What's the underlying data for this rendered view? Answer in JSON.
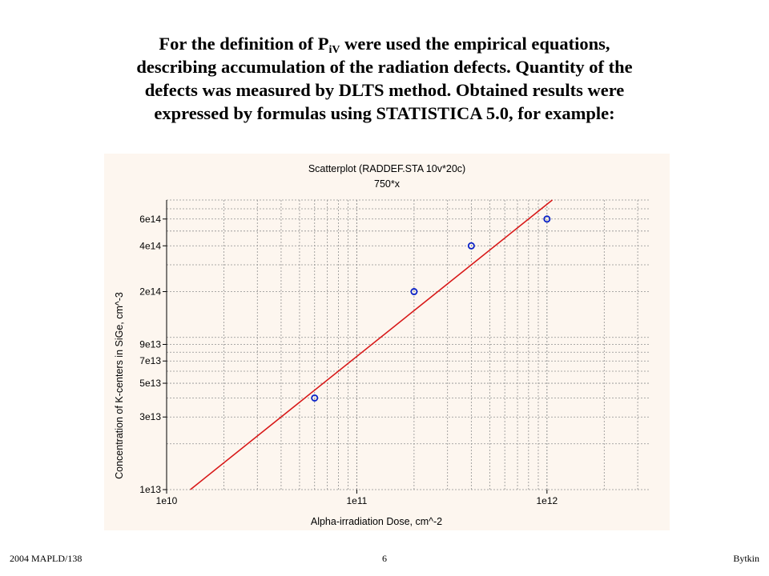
{
  "heading": {
    "line1_pre": "For the definition of P",
    "line1_sub": "iV",
    "line1_post": " were used the empirical equations,",
    "line2": "describing accumulation of the radiation defects. Quantity of the",
    "line3": "defects was measured by DLTS  method. Obtained results were",
    "line4": "expressed by formulas using STATISTICA 5.0, for example:"
  },
  "colors": {
    "panel_background": "#fdf6ef",
    "fit_line": "#d81818",
    "points": "#0a22c8",
    "grid": "#909090"
  },
  "chart_data": {
    "type": "scatter",
    "title": "Scatterplot (RADDEF.STA 10v*20c)",
    "subtitle": "750*x",
    "xlabel": "Alpha-irradiation Dose, cm^-2",
    "ylabel": "Concentration of K-centers in SiGe, cm^-3",
    "xscale": "log",
    "yscale": "log",
    "xlim": [
      10000000000.0,
      3500000000000.0
    ],
    "ylim": [
      10000000000000.0,
      800000000000000.0
    ],
    "grid": true,
    "x_ticks": [
      {
        "value": 10000000000.0,
        "label": "1e10"
      },
      {
        "value": 100000000000.0,
        "label": "1e11"
      },
      {
        "value": 1000000000000.0,
        "label": "1e12"
      }
    ],
    "y_ticks": [
      {
        "value": 10000000000000.0,
        "label": "1e13"
      },
      {
        "value": 30000000000000.0,
        "label": "3e13"
      },
      {
        "value": 50000000000000.0,
        "label": "5e13"
      },
      {
        "value": 70000000000000.0,
        "label": "7e13"
      },
      {
        "value": 90000000000000.0,
        "label": "9e13"
      },
      {
        "value": 200000000000000.0,
        "label": "2e14"
      },
      {
        "value": 400000000000000.0,
        "label": "4e14"
      },
      {
        "value": 600000000000000.0,
        "label": "6e14"
      }
    ],
    "points": [
      {
        "x": 60000000000.0,
        "y": 40000000000000.0
      },
      {
        "x": 200000000000.0,
        "y": 200000000000000.0
      },
      {
        "x": 400000000000.0,
        "y": 400000000000000.0
      },
      {
        "x": 1000000000000.0,
        "y": 600000000000000.0
      }
    ],
    "fit": {
      "slope": 750
    }
  },
  "footer": {
    "left": "2004 MAPLD/138",
    "center": "6",
    "right": "Bytkin"
  }
}
